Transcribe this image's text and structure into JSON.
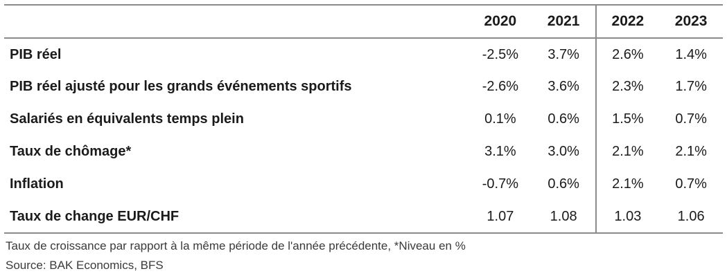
{
  "table": {
    "years": [
      "2020",
      "2021",
      "2022",
      "2023"
    ],
    "rows": [
      {
        "label": "PIB réel",
        "values": [
          "-2.5%",
          "3.7%",
          "2.6%",
          "1.4%"
        ]
      },
      {
        "label": "PIB réel ajusté pour les grands événements sportifs",
        "values": [
          "-2.6%",
          "3.6%",
          "2.3%",
          "1.7%"
        ]
      },
      {
        "label": "Salariés en équivalents temps plein",
        "values": [
          "0.1%",
          "0.6%",
          "1.5%",
          "0.7%"
        ]
      },
      {
        "label": "Taux de chômage*",
        "values": [
          "3.1%",
          "3.0%",
          "2.1%",
          "2.1%"
        ]
      },
      {
        "label": "Inflation",
        "values": [
          "-0.7%",
          "0.6%",
          "2.1%",
          "0.7%"
        ]
      },
      {
        "label": "Taux de change EUR/CHF",
        "values": [
          "1.07",
          "1.08",
          "1.03",
          "1.06"
        ]
      }
    ]
  },
  "footnote": "Taux de croissance par rapport à la même période de l'année précédente, *Niveau en %",
  "source": "Source: BAK Economics, BFS"
}
